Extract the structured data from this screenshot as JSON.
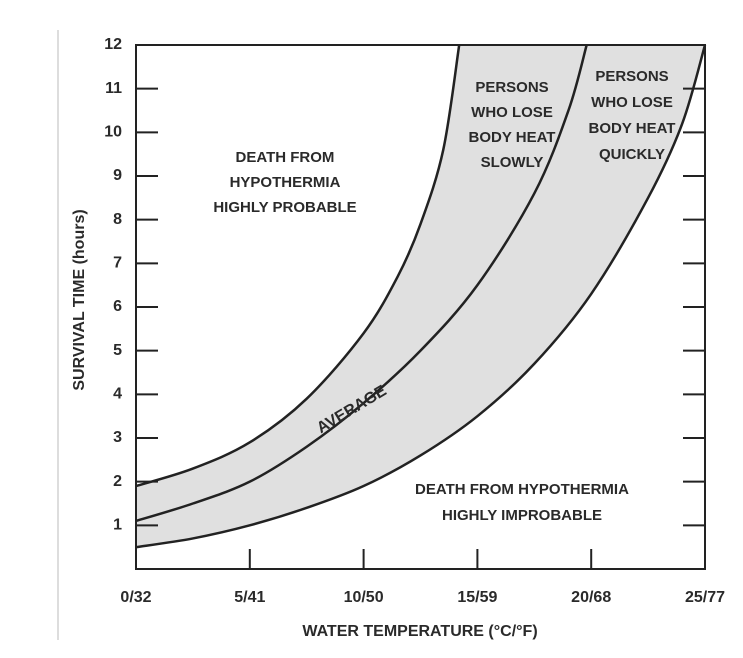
{
  "chart_data": {
    "type": "line",
    "xlabel": "WATER TEMPERATURE (°C/°F)",
    "ylabel": "SURVIVAL TIME (hours)",
    "xlim": [
      0,
      25
    ],
    "ylim": [
      0,
      12
    ],
    "xticks": [
      {
        "value": 0,
        "label": "0/32"
      },
      {
        "value": 5,
        "label": "5/41"
      },
      {
        "value": 10,
        "label": "10/50"
      },
      {
        "value": 15,
        "label": "15/59"
      },
      {
        "value": 20,
        "label": "20/68"
      },
      {
        "value": 25,
        "label": "25/77"
      }
    ],
    "yticks": [
      1,
      2,
      3,
      4,
      5,
      6,
      7,
      8,
      9,
      10,
      11,
      12
    ],
    "band_color": "#e0e0e0",
    "series": [
      {
        "color": "#222222",
        "x": [
          0,
          2.5,
          5,
          7.5,
          10,
          11.5,
          12.5,
          13.5,
          14.2
        ],
        "values": [
          1.9,
          2.3,
          2.9,
          3.9,
          5.4,
          6.7,
          7.9,
          9.6,
          12
        ]
      },
      {
        "name": "AVERAGE",
        "color": "#222222",
        "x": [
          0,
          2.5,
          5,
          7.5,
          10,
          12.5,
          15,
          17.5,
          19,
          19.8
        ],
        "values": [
          1.1,
          1.5,
          2.0,
          2.8,
          3.8,
          5.0,
          6.5,
          8.6,
          10.5,
          12
        ]
      },
      {
        "color": "#222222",
        "x": [
          0,
          2.5,
          5,
          7.5,
          10,
          12.5,
          15,
          17.5,
          20,
          22.5,
          24,
          25
        ],
        "values": [
          0.5,
          0.7,
          1.0,
          1.4,
          1.9,
          2.6,
          3.5,
          4.7,
          6.3,
          8.5,
          10.2,
          12
        ]
      }
    ],
    "annotations": [
      [
        "DEATH FROM",
        "HYPOTHERMIA",
        "HIGHLY PROBABLE"
      ],
      [
        "PERSONS",
        "WHO LOSE",
        "BODY HEAT",
        "SLOWLY"
      ],
      [
        "PERSONS",
        "WHO LOSE",
        "BODY HEAT",
        "QUICKLY"
      ],
      [
        "DEATH FROM HYPOTHERMIA",
        "HIGHLY IMPROBABLE"
      ]
    ]
  }
}
